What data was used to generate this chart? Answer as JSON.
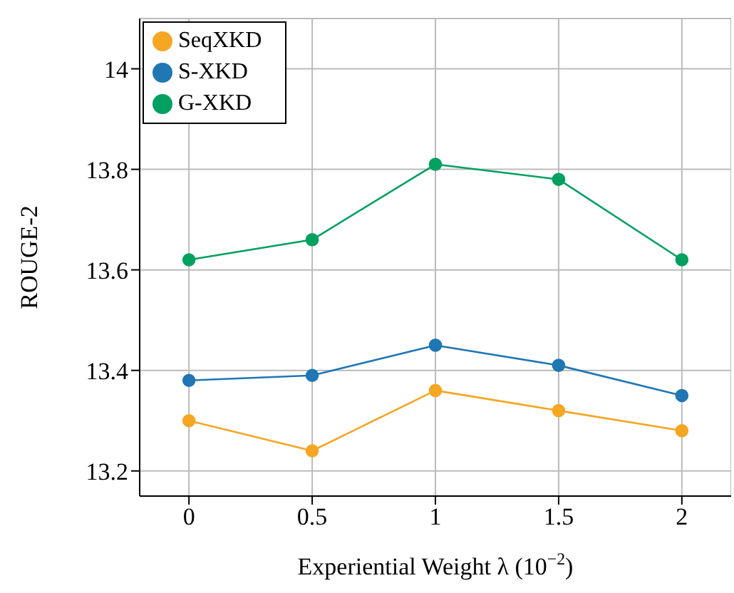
{
  "chart_data": {
    "type": "line",
    "xlabel": "Experiential Weight λ (10$^{−2}$)",
    "ylabel": "ROUGE-2",
    "x": [
      0,
      0.5,
      1,
      1.5,
      2
    ],
    "series": [
      {
        "name": "SeqXKD",
        "color": "#f5a623",
        "values": [
          13.3,
          13.24,
          13.36,
          13.32,
          13.28
        ]
      },
      {
        "name": "S-XKD",
        "color": "#1f77b4",
        "values": [
          13.38,
          13.39,
          13.45,
          13.41,
          13.35
        ]
      },
      {
        "name": "G-XKD",
        "color": "#00a060",
        "values": [
          13.62,
          13.66,
          13.81,
          13.78,
          13.62
        ]
      }
    ],
    "xlim": [
      -0.2,
      2.2
    ],
    "xticks": [
      0,
      0.5,
      1,
      1.5,
      2
    ],
    "ylim": [
      13.15,
      14.1
    ],
    "yticks": [
      13.2,
      13.4,
      13.6,
      13.8,
      14
    ],
    "grid": true,
    "legend": "top left",
    "marker": "circle",
    "line_style": "solid"
  }
}
